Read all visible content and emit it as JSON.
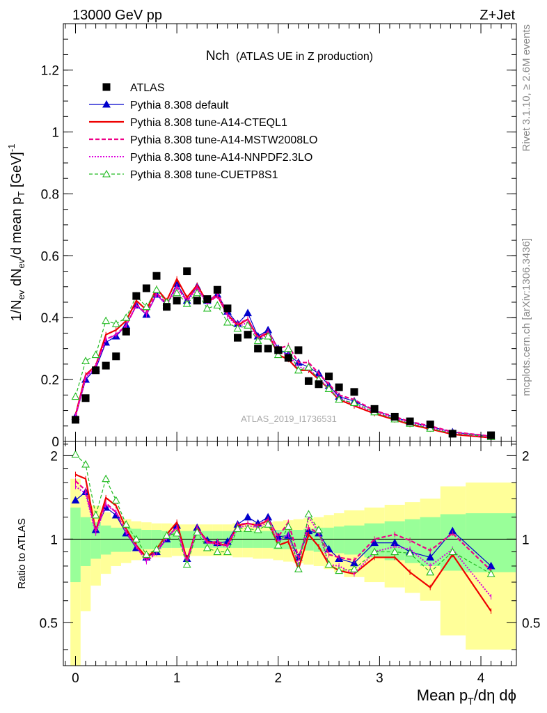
{
  "header": {
    "left": "13000 GeV pp",
    "right": "Z+Jet"
  },
  "side_labels": {
    "rivet_parts": [
      "Rivet 3.1.10, ",
      "≥",
      " 2.6M events"
    ],
    "mcplots": "mcplots.cern.ch [arXiv:1306.3436]"
  },
  "watermark": "ATLAS_2019_I1736531",
  "colors": {
    "data": "#000000",
    "default": "#0000cc",
    "cteql1": "#ee0000",
    "mstw": "#ee0088",
    "nnpdf": "#dd00dd",
    "cuetp8s1": "#22bb22",
    "band_inner": "#99ff99",
    "band_outer": "#ffff99"
  },
  "chart_data": [
    {
      "type": "line",
      "title_main": "Nch",
      "title_sub": "(ATLAS UE in Z production)",
      "ylabel_parts": [
        "1/N",
        "ev",
        " dN",
        "ev",
        "/d mean p",
        "T",
        " [GeV]",
        "-1"
      ],
      "xlim": [
        -0.12,
        4.35
      ],
      "ylim": [
        0,
        1.35
      ],
      "yticks": [
        0,
        0.2,
        0.4,
        0.6,
        0.8,
        1,
        1.2
      ],
      "ytick_labels": [
        "0",
        "0.2",
        "0.4",
        "0.6",
        "0.8",
        "1",
        "1.2"
      ],
      "legend_position": "top-left",
      "x": [
        0,
        0.1,
        0.2,
        0.3,
        0.4,
        0.5,
        0.6,
        0.7,
        0.8,
        0.9,
        1.0,
        1.1,
        1.2,
        1.3,
        1.4,
        1.5,
        1.6,
        1.7,
        1.8,
        1.9,
        2.0,
        2.1,
        2.2,
        2.3,
        2.4,
        2.5,
        2.6,
        2.75,
        2.95,
        3.15,
        3.3,
        3.5,
        3.72,
        4.1
      ],
      "data": {
        "name": "ATLAS",
        "values": [
          0.07,
          0.14,
          0.23,
          0.245,
          0.275,
          0.355,
          0.47,
          0.495,
          0.535,
          0.435,
          0.455,
          0.55,
          0.455,
          0.46,
          0.49,
          0.43,
          0.335,
          0.345,
          0.3,
          0.3,
          0.295,
          0.27,
          0.295,
          0.195,
          0.185,
          0.21,
          0.175,
          0.16,
          0.105,
          0.08,
          0.065,
          0.055,
          0.025,
          0.02
        ]
      },
      "series": [
        {
          "name": "Pythia 8.308 default",
          "style": "default",
          "values": [
            0.08,
            0.2,
            0.235,
            0.32,
            0.34,
            0.375,
            0.44,
            0.41,
            0.475,
            0.44,
            0.51,
            0.455,
            0.5,
            0.455,
            0.475,
            0.42,
            0.38,
            0.415,
            0.34,
            0.36,
            0.3,
            0.28,
            0.255,
            0.24,
            0.22,
            0.18,
            0.145,
            0.13,
            0.1,
            0.078,
            0.063,
            0.048,
            0.03,
            0.017
          ]
        },
        {
          "name": "Pythia 8.308 tune-A14-CTEQL1",
          "style": "cteql1",
          "values": [
            0.085,
            0.215,
            0.245,
            0.345,
            0.36,
            0.39,
            0.455,
            0.425,
            0.495,
            0.455,
            0.525,
            0.465,
            0.505,
            0.45,
            0.47,
            0.41,
            0.375,
            0.395,
            0.335,
            0.35,
            0.28,
            0.265,
            0.23,
            0.23,
            0.2,
            0.17,
            0.135,
            0.115,
            0.09,
            0.07,
            0.055,
            0.04,
            0.023,
            0.012
          ]
        },
        {
          "name": "Pythia 8.308 tune-A14-MSTW2008LO",
          "style": "mstw",
          "values": [
            0.08,
            0.21,
            0.245,
            0.33,
            0.345,
            0.375,
            0.44,
            0.415,
            0.48,
            0.445,
            0.5,
            0.455,
            0.5,
            0.445,
            0.48,
            0.41,
            0.38,
            0.395,
            0.335,
            0.355,
            0.3,
            0.31,
            0.255,
            0.255,
            0.22,
            0.185,
            0.15,
            0.135,
            0.1,
            0.08,
            0.064,
            0.05,
            0.031,
            0.017
          ]
        },
        {
          "name": "Pythia 8.308 tune-A14-NNPDF2.3LO",
          "style": "nnpdf",
          "values": [
            0.082,
            0.205,
            0.24,
            0.33,
            0.345,
            0.375,
            0.44,
            0.41,
            0.475,
            0.44,
            0.5,
            0.45,
            0.495,
            0.445,
            0.47,
            0.405,
            0.37,
            0.385,
            0.33,
            0.345,
            0.29,
            0.28,
            0.24,
            0.235,
            0.205,
            0.17,
            0.14,
            0.12,
            0.095,
            0.075,
            0.06,
            0.044,
            0.027,
            0.014
          ]
        },
        {
          "name": "Pythia 8.308 tune-CUETP8S1",
          "style": "cuetp8s1",
          "values": [
            0.145,
            0.26,
            0.28,
            0.39,
            0.38,
            0.4,
            0.47,
            0.435,
            0.49,
            0.45,
            0.48,
            0.445,
            0.48,
            0.43,
            0.44,
            0.385,
            0.365,
            0.375,
            0.325,
            0.34,
            0.28,
            0.3,
            0.23,
            0.24,
            0.2,
            0.17,
            0.135,
            0.125,
            0.095,
            0.072,
            0.058,
            0.042,
            0.026,
            0.015
          ]
        }
      ]
    },
    {
      "type": "line",
      "ylabel": "Ratio to ATLAS",
      "xlabel_parts": [
        "Mean p",
        "T",
        "/dη dϕ"
      ],
      "xlim": [
        -0.12,
        4.35
      ],
      "ylim": [
        0.35,
        2.25
      ],
      "yticks": [
        0.5,
        1,
        2
      ],
      "ytick_labels": [
        "0.5",
        "1",
        "2"
      ],
      "xticks": [
        0,
        1,
        2,
        3,
        4
      ],
      "xtick_labels": [
        "0",
        "1",
        "2",
        "3",
        "4"
      ],
      "x": [
        0,
        0.1,
        0.2,
        0.3,
        0.4,
        0.5,
        0.6,
        0.7,
        0.8,
        0.9,
        1.0,
        1.1,
        1.2,
        1.3,
        1.4,
        1.5,
        1.6,
        1.7,
        1.8,
        1.9,
        2.0,
        2.1,
        2.2,
        2.3,
        2.4,
        2.5,
        2.6,
        2.75,
        2.95,
        3.15,
        3.3,
        3.5,
        3.72,
        4.1
      ],
      "band_edges": [
        -0.05,
        0.05,
        0.15,
        0.25,
        0.35,
        0.45,
        0.55,
        0.65,
        0.75,
        0.85,
        0.95,
        1.05,
        1.15,
        1.25,
        1.35,
        1.45,
        1.55,
        1.65,
        1.75,
        1.85,
        1.95,
        2.05,
        2.15,
        2.25,
        2.35,
        2.45,
        2.55,
        2.65,
        2.85,
        3.05,
        3.25,
        3.4,
        3.6,
        3.85,
        4.35
      ],
      "band_inner": [
        [
          0.7,
          1.3
        ],
        [
          0.8,
          1.2
        ],
        [
          0.85,
          1.15
        ],
        [
          0.88,
          1.12
        ],
        [
          0.9,
          1.1
        ],
        [
          0.9,
          1.1
        ],
        [
          0.91,
          1.09
        ],
        [
          0.92,
          1.08
        ],
        [
          0.92,
          1.08
        ],
        [
          0.93,
          1.07
        ],
        [
          0.93,
          1.07
        ],
        [
          0.93,
          1.07
        ],
        [
          0.93,
          1.07
        ],
        [
          0.93,
          1.07
        ],
        [
          0.93,
          1.07
        ],
        [
          0.93,
          1.07
        ],
        [
          0.93,
          1.07
        ],
        [
          0.93,
          1.07
        ],
        [
          0.93,
          1.07
        ],
        [
          0.93,
          1.07
        ],
        [
          0.92,
          1.08
        ],
        [
          0.92,
          1.08
        ],
        [
          0.92,
          1.08
        ],
        [
          0.91,
          1.09
        ],
        [
          0.9,
          1.1
        ],
        [
          0.9,
          1.1
        ],
        [
          0.89,
          1.11
        ],
        [
          0.88,
          1.12
        ],
        [
          0.86,
          1.14
        ],
        [
          0.84,
          1.16
        ],
        [
          0.82,
          1.18
        ],
        [
          0.8,
          1.2
        ],
        [
          0.77,
          1.23
        ],
        [
          0.76,
          1.24
        ]
      ],
      "band_outer": [
        [
          0.35,
          1.65
        ],
        [
          0.55,
          1.45
        ],
        [
          0.68,
          1.32
        ],
        [
          0.75,
          1.25
        ],
        [
          0.8,
          1.2
        ],
        [
          0.82,
          1.18
        ],
        [
          0.84,
          1.16
        ],
        [
          0.85,
          1.15
        ],
        [
          0.86,
          1.14
        ],
        [
          0.86,
          1.14
        ],
        [
          0.87,
          1.13
        ],
        [
          0.87,
          1.13
        ],
        [
          0.87,
          1.13
        ],
        [
          0.87,
          1.13
        ],
        [
          0.87,
          1.13
        ],
        [
          0.87,
          1.13
        ],
        [
          0.86,
          1.14
        ],
        [
          0.86,
          1.14
        ],
        [
          0.85,
          1.15
        ],
        [
          0.85,
          1.15
        ],
        [
          0.84,
          1.16
        ],
        [
          0.83,
          1.17
        ],
        [
          0.82,
          1.18
        ],
        [
          0.81,
          1.19
        ],
        [
          0.8,
          1.2
        ],
        [
          0.78,
          1.22
        ],
        [
          0.76,
          1.24
        ],
        [
          0.73,
          1.27
        ],
        [
          0.7,
          1.3
        ],
        [
          0.67,
          1.33
        ],
        [
          0.64,
          1.36
        ],
        [
          0.6,
          1.4
        ],
        [
          0.45,
          1.55
        ],
        [
          0.4,
          1.6
        ]
      ],
      "series": [
        {
          "name": "Pythia 8.308 default",
          "style": "default",
          "values": [
            1.38,
            1.48,
            1.08,
            1.3,
            1.22,
            1.05,
            0.93,
            0.86,
            0.9,
            1.0,
            1.12,
            0.85,
            1.1,
            0.99,
            0.97,
            0.98,
            1.13,
            1.2,
            1.14,
            1.2,
            1.02,
            1.03,
            0.86,
            1.07,
            1.05,
            0.92,
            0.85,
            0.82,
            0.97,
            0.97,
            0.9,
            0.86,
            1.07,
            0.8
          ]
        },
        {
          "name": "Pythia 8.308 tune-A14-CTEQL1",
          "style": "cteql1",
          "values": [
            1.71,
            1.65,
            1.07,
            1.41,
            1.32,
            1.09,
            0.95,
            0.86,
            0.92,
            1.04,
            1.15,
            0.84,
            1.1,
            0.98,
            0.96,
            0.95,
            1.12,
            1.14,
            1.12,
            1.17,
            0.95,
            0.98,
            0.78,
            1.04,
            0.94,
            0.81,
            0.77,
            0.75,
            0.86,
            0.86,
            0.76,
            0.67,
            0.88,
            0.55
          ]
        },
        {
          "name": "Pythia 8.308 tune-A14-MSTW2008LO",
          "style": "mstw",
          "values": [
            1.62,
            1.5,
            1.07,
            1.35,
            1.25,
            1.06,
            0.94,
            0.84,
            0.9,
            1.02,
            1.1,
            0.83,
            1.1,
            0.97,
            0.98,
            0.95,
            1.13,
            1.14,
            1.12,
            1.18,
            1.02,
            1.15,
            0.86,
            1.1,
            1.05,
            0.88,
            0.86,
            0.84,
            1.0,
            1.04,
            0.99,
            0.91,
            1.05,
            0.77
          ]
        },
        {
          "name": "Pythia 8.308 tune-A14-NNPDF2.3LO",
          "style": "nnpdf",
          "values": [
            1.55,
            1.46,
            1.05,
            1.33,
            1.25,
            1.06,
            0.94,
            0.83,
            0.89,
            1.01,
            1.1,
            0.82,
            1.09,
            0.97,
            0.96,
            0.94,
            1.1,
            1.12,
            1.1,
            1.15,
            0.98,
            1.04,
            0.81,
            1.2,
            1.06,
            0.81,
            0.8,
            0.75,
            0.9,
            0.94,
            0.92,
            0.8,
            0.92,
            0.62
          ]
        },
        {
          "name": "Pythia 8.308 tune-CUETP8S1",
          "style": "cuetp8s1",
          "values": [
            2.02,
            1.86,
            1.22,
            1.65,
            1.38,
            1.13,
            1.0,
            0.88,
            0.92,
            1.03,
            1.05,
            0.81,
            1.06,
            0.93,
            0.9,
            0.9,
            1.09,
            1.09,
            1.08,
            1.13,
            0.95,
            1.11,
            0.78,
            1.23,
            1.08,
            0.81,
            0.77,
            0.78,
            0.9,
            0.9,
            0.89,
            0.76,
            0.9,
            0.75
          ]
        }
      ]
    }
  ]
}
